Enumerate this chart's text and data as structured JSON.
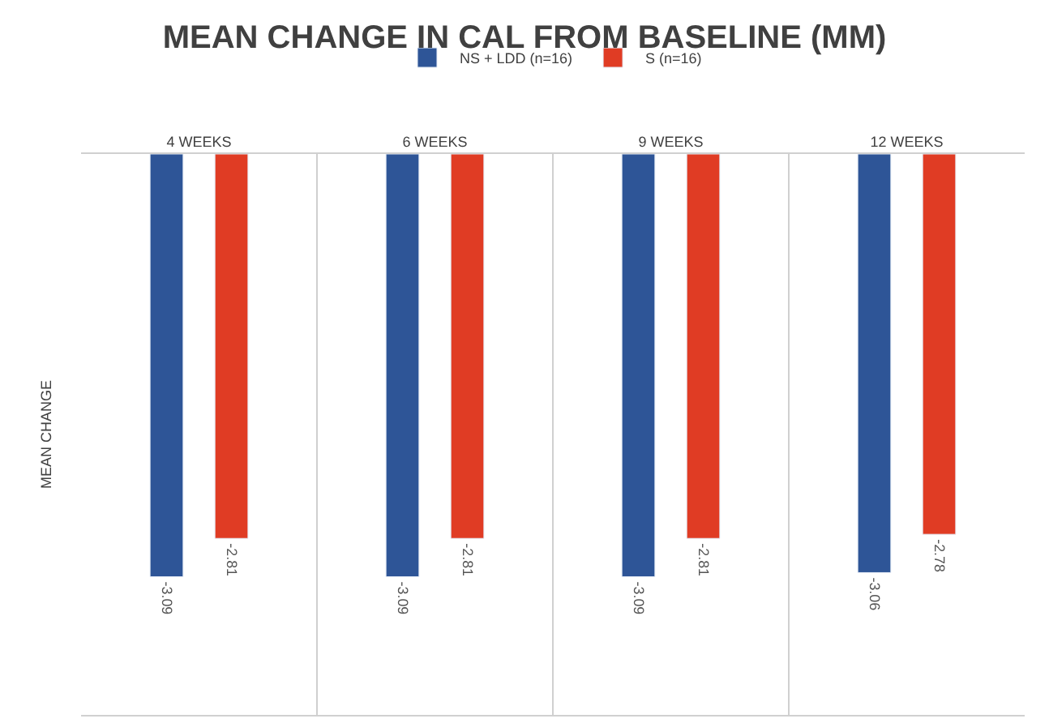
{
  "chart_data": {
    "type": "bar",
    "title": "MEAN CHANGE IN CAL FROM BASELINE (MM)",
    "ylabel": "MEAN CHANGE",
    "categories": [
      "4 WEEKS",
      "6 WEEKS",
      "9 WEEKS",
      "12 WEEKS"
    ],
    "series": [
      {
        "name": "NS + LDD (n=16)",
        "color": "#2e5597",
        "values": [
          -3.09,
          -3.09,
          -3.09,
          -3.06
        ]
      },
      {
        "name": "S (n=16)",
        "color": "#e03c24",
        "values": [
          -2.81,
          -2.81,
          -2.81,
          -2.78
        ]
      }
    ],
    "ylim": [
      -4.1,
      0
    ],
    "tick_labels": "x",
    "data_labels": true,
    "grid": "x",
    "legend": "top"
  }
}
